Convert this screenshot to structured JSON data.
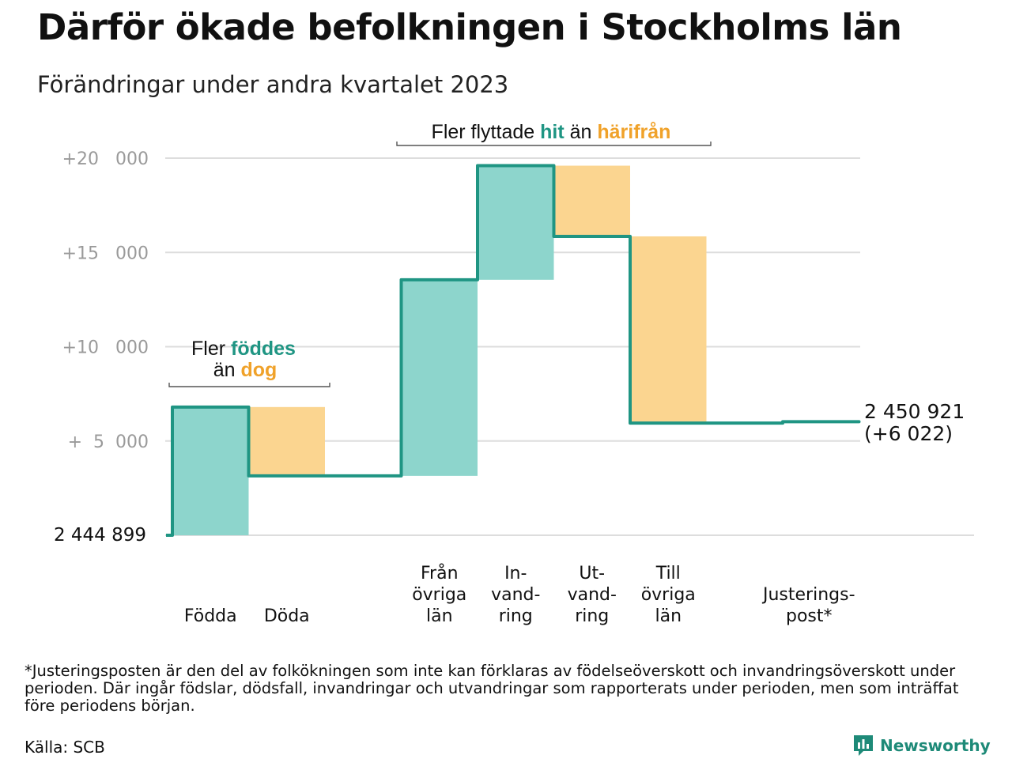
{
  "title": "Därför ökade befolkningen i Stockholms län",
  "subtitle": "Förändringar under andra kvartalet 2023",
  "colors": {
    "increase": "#8dd5cc",
    "decrease": "#fbd590",
    "line": "#1f9583",
    "teal_text": "#1f9583",
    "orange_text": "#f0a22a",
    "grid": "#dddddd"
  },
  "chart_data": {
    "type": "waterfall",
    "base_value": 2444899,
    "base_label": "2  444   899",
    "ylim": [
      0,
      20000
    ],
    "yticks": [
      {
        "value": 5000,
        "label": "+  5  000"
      },
      {
        "value": 10000,
        "label": "+10   000"
      },
      {
        "value": 15000,
        "label": "+15   000"
      },
      {
        "value": 20000,
        "label": "+20   000"
      }
    ],
    "steps": [
      {
        "label": [
          "Födda"
        ],
        "start": 0,
        "end": 6800,
        "kind": "increase"
      },
      {
        "label": [
          "Döda"
        ],
        "start": 6800,
        "end": 3150,
        "kind": "decrease"
      },
      {
        "label": [],
        "start": 3150,
        "end": 3150,
        "kind": "none"
      },
      {
        "label": [
          "Från",
          "övriga",
          "län"
        ],
        "start": 3150,
        "end": 13550,
        "kind": "increase"
      },
      {
        "label": [
          "In-",
          "vand-",
          "ring"
        ],
        "start": 13550,
        "end": 19600,
        "kind": "increase"
      },
      {
        "label": [
          "Ut-",
          "vand-",
          "ring"
        ],
        "start": 19600,
        "end": 15850,
        "kind": "decrease"
      },
      {
        "label": [
          "Till",
          "övriga",
          "län"
        ],
        "start": 15850,
        "end": 5950,
        "kind": "decrease"
      },
      {
        "label": [],
        "start": 5950,
        "end": 5950,
        "kind": "none"
      },
      {
        "label": [
          "Justerings-",
          "post*"
        ],
        "start": 5950,
        "end": 6022,
        "kind": "adjust"
      }
    ],
    "end_value_label": "2 450 921",
    "end_change_label": "(+6 022)",
    "annotations": {
      "births": {
        "part1": "Fler ",
        "highlight1": "föddes",
        "part2": "än ",
        "highlight2": "dog"
      },
      "migration": {
        "part1": "Fler flyttade ",
        "highlight1": "hit",
        "part2": " än ",
        "highlight2": "härifrån"
      }
    }
  },
  "footnote": "*Justeringsposten är den del av folkökningen som inte kan förklaras av födelseöverskott och invandringsöverskott under perioden. Där ingår födslar, dödsfall, invandringar och utvandringar som rapporterats under perioden, men som inträffat före periodens början.",
  "source": "Källa: SCB",
  "brand": {
    "name": "Newsworthy",
    "icon": "newsworthy-logo-icon"
  }
}
